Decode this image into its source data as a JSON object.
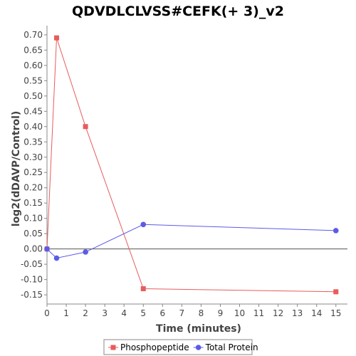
{
  "chart_data": {
    "type": "line",
    "title": "QDVDLCLVSS#CEFK(+ 3)_v2",
    "xlabel": "Time (minutes)",
    "ylabel": "log2(dDAVP/Control)",
    "xlim": [
      0,
      15.6
    ],
    "ylim": [
      -0.18,
      0.73
    ],
    "xticks": [
      0,
      1,
      2,
      3,
      4,
      5,
      6,
      7,
      8,
      9,
      10,
      11,
      12,
      13,
      14,
      15
    ],
    "xtick_labels": [
      "0",
      "1",
      "2",
      "3",
      "4",
      "5",
      "6",
      "7",
      "8",
      "9",
      "10",
      "11",
      "12",
      "13",
      "14",
      "15"
    ],
    "yticks": [
      -0.15,
      -0.1,
      -0.05,
      0.0,
      0.05,
      0.1,
      0.15,
      0.2,
      0.25,
      0.3,
      0.35,
      0.4,
      0.45,
      0.5,
      0.55,
      0.6,
      0.65,
      0.7
    ],
    "ytick_labels": [
      "-0.15",
      "-0.10",
      "-0.05",
      "0.00",
      "0.05",
      "0.10",
      "0.15",
      "0.20",
      "0.25",
      "0.30",
      "0.35",
      "0.40",
      "0.45",
      "0.50",
      "0.55",
      "0.60",
      "0.65",
      "0.70"
    ],
    "zero_line": true,
    "grid": false,
    "legend_position": "bottom-center",
    "series": [
      {
        "name": "Phosphopeptide",
        "color": "#e85c5c",
        "marker": "square",
        "x": [
          0,
          0.5,
          2,
          5,
          15
        ],
        "y": [
          0.0,
          0.69,
          0.4,
          -0.13,
          -0.14
        ]
      },
      {
        "name": "Total Protein",
        "color": "#5b5be8",
        "marker": "circle",
        "x": [
          0,
          0.5,
          2,
          5,
          15
        ],
        "y": [
          0.0,
          -0.03,
          -0.01,
          0.08,
          0.06
        ]
      }
    ]
  }
}
